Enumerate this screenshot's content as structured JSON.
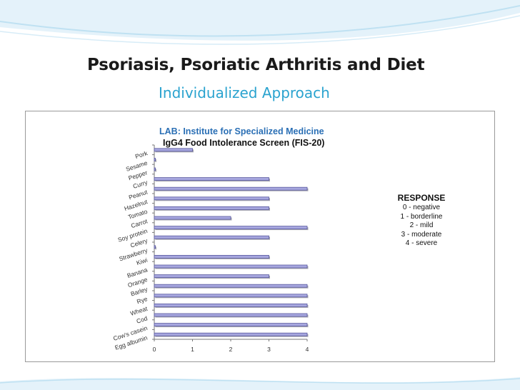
{
  "slide": {
    "title": "Psoriasis, Psoriatic Arthritis and Diet",
    "subtitle": "Individualized Approach",
    "colors": {
      "title": "#1a1a1a",
      "subtitle": "#2aa3cf",
      "wave": "#cfe8f5",
      "bar_fill": "#a6a6de",
      "bar_edge": "#5a5aa0"
    }
  },
  "chart_data": {
    "type": "bar",
    "orientation": "horizontal",
    "title": "LAB: Institute for Specialized Medicine",
    "subtitle": "IgG4 Food Intolerance Screen (FIS-20)",
    "categories": [
      "Pork",
      "Sesame",
      "Pepper",
      "Curry",
      "Peanut",
      "Hazelnut",
      "Tomato",
      "Carrot",
      "Soy protein",
      "Celery",
      "Strawberry",
      "Kiwi",
      "Banana",
      "Orange",
      "Barley",
      "Rye",
      "Wheat",
      "Cod",
      "Cow's casein",
      "Egg albumin"
    ],
    "values": [
      1,
      0,
      0,
      3,
      4,
      3,
      3,
      2,
      4,
      3,
      0,
      3,
      4,
      3,
      4,
      4,
      4,
      4,
      4,
      4
    ],
    "xlim": [
      0,
      4
    ],
    "xticks": [
      "0",
      "1",
      "2",
      "3",
      "4"
    ],
    "grid": false,
    "legend": {
      "position": "right",
      "title": "RESPONSE",
      "items": [
        "0 - negative",
        "1 - borderline",
        "2 - mild",
        "3 - moderate",
        "4 - severe"
      ]
    }
  }
}
